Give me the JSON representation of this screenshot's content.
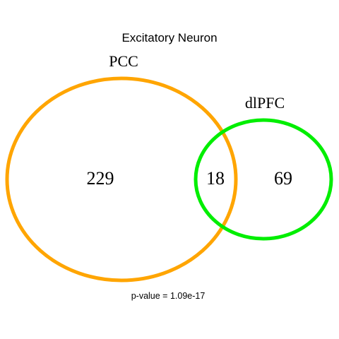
{
  "title": "Excitatory Neuron",
  "sets": [
    {
      "label": "PCC",
      "color": "#FFA500",
      "unique_count": "229"
    },
    {
      "label": "dlPFC",
      "color": "#00EE00",
      "unique_count": "69"
    }
  ],
  "intersection_count": "18",
  "footnote": "p-value = 1.09e-17"
}
